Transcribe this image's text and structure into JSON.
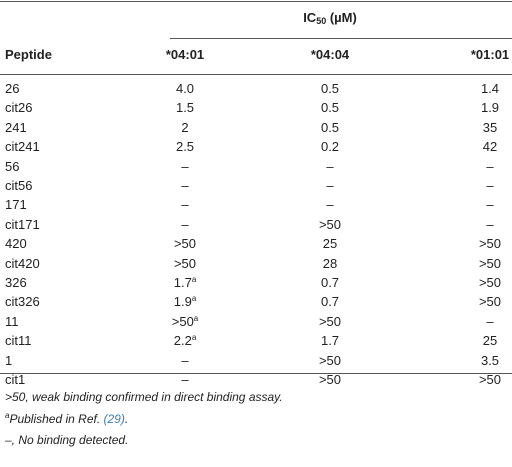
{
  "table": {
    "group_header": {
      "main": "IC",
      "sub": "50",
      "rest": " (µM)"
    },
    "columns": [
      "Peptide",
      "*04:01",
      "*04:04",
      "*01:01"
    ],
    "rows": [
      [
        "26",
        "4.0",
        "0.5",
        "1.4"
      ],
      [
        "cit26",
        "1.5",
        "0.5",
        "1.9"
      ],
      [
        "241",
        "2",
        "0.5",
        "35"
      ],
      [
        "cit241",
        "2.5",
        "0.2",
        "42"
      ],
      [
        "56",
        "–",
        "–",
        "–"
      ],
      [
        "cit56",
        "–",
        "–",
        "–"
      ],
      [
        "171",
        "–",
        "–",
        "–"
      ],
      [
        "cit171",
        "–",
        ">50",
        "–"
      ],
      [
        "420",
        ">50",
        "25",
        ">50"
      ],
      [
        "cit420",
        ">50",
        "28",
        ">50"
      ],
      [
        "326",
        {
          "text": "1.7",
          "sup": "a"
        },
        "0.7",
        ">50"
      ],
      [
        "cit326",
        {
          "text": "1.9",
          "sup": "a"
        },
        "0.7",
        ">50"
      ],
      [
        "11",
        {
          "text": ">50",
          "sup": "a"
        },
        ">50",
        "–"
      ],
      [
        "cit11",
        {
          "text": "2.2",
          "sup": "a"
        },
        "1.7",
        "25"
      ],
      [
        "1",
        "–",
        ">50",
        "3.5"
      ],
      [
        "cit1",
        "–",
        ">50",
        ">50"
      ]
    ],
    "footnotes": [
      {
        "text": ">50, weak binding confirmed in direct binding assay."
      },
      {
        "sup": "a",
        "text": "Published in Ref. ",
        "ref": "(29)",
        "end": "."
      },
      {
        "text": "–, No binding detected."
      }
    ]
  }
}
